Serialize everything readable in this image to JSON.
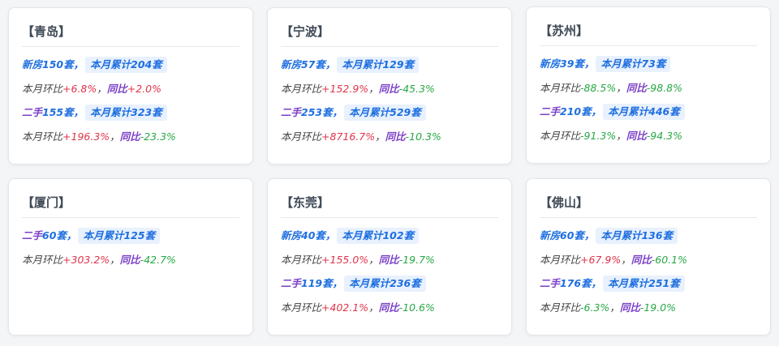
{
  "labels": {
    "mom": "本月环比",
    "yoy": "同比",
    "cumulative_prefix": "本月累计",
    "unit": "套",
    "comma": "，"
  },
  "colors": {
    "positive": "#e0344a",
    "negative": "#28a745",
    "new_home": "#1f6fe0",
    "second_hand": "#7a3fc8"
  },
  "cities": [
    {
      "title": "【青岛】",
      "sections": [
        {
          "type": "新房",
          "count": "150",
          "cumulative": "204",
          "mom": "+6.8%",
          "yoy": "+2.0%"
        },
        {
          "type": "二手",
          "count": "155",
          "cumulative": "323",
          "mom": "+196.3%",
          "yoy": "-23.3%"
        }
      ]
    },
    {
      "title": "【宁波】",
      "sections": [
        {
          "type": "新房",
          "count": "57",
          "cumulative": "129",
          "mom": "+152.9%",
          "yoy": "-45.3%"
        },
        {
          "type": "二手",
          "count": "253",
          "cumulative": "529",
          "mom": "+8716.7%",
          "yoy": "-10.3%"
        }
      ]
    },
    {
      "title": "【苏州】",
      "sections": [
        {
          "type": "新房",
          "count": "39",
          "cumulative": "73",
          "mom": "-88.5%",
          "yoy": "-98.8%"
        },
        {
          "type": "二手",
          "count": "210",
          "cumulative": "446",
          "mom": "-91.3%",
          "yoy": "-94.3%"
        }
      ]
    },
    {
      "title": "【厦门】",
      "sections": [
        {
          "type": "二手",
          "count": "60",
          "cumulative": "125",
          "mom": "+303.2%",
          "yoy": "-42.7%"
        }
      ]
    },
    {
      "title": "【东莞】",
      "sections": [
        {
          "type": "新房",
          "count": "40",
          "cumulative": "102",
          "mom": "+155.0%",
          "yoy": "-19.7%"
        },
        {
          "type": "二手",
          "count": "119",
          "cumulative": "236",
          "mom": "+402.1%",
          "yoy": "-10.6%"
        }
      ]
    },
    {
      "title": "【佛山】",
      "sections": [
        {
          "type": "新房",
          "count": "60",
          "cumulative": "136",
          "mom": "+67.9%",
          "yoy": "-60.1%"
        },
        {
          "type": "二手",
          "count": "176",
          "cumulative": "251",
          "mom": "-6.3%",
          "yoy": "-19.0%"
        }
      ]
    }
  ]
}
